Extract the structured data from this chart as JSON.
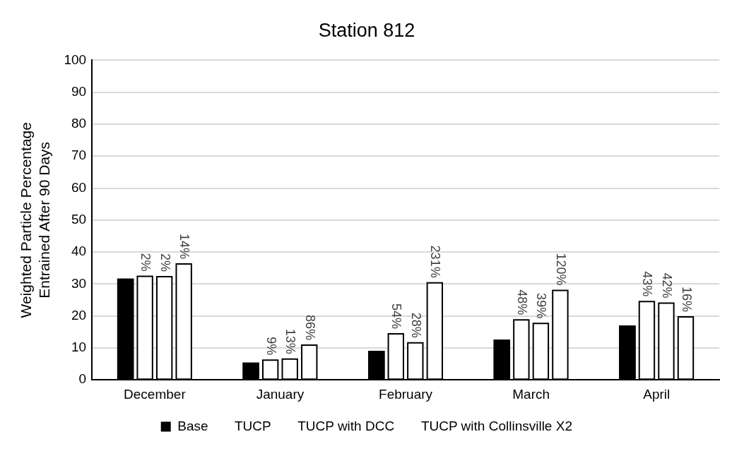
{
  "chart_data": {
    "type": "bar",
    "title": "Station 812",
    "ylabel": "Weighted Particle Percentage\nEntrained After 90 Days",
    "categories": [
      "December",
      "January",
      "February",
      "March",
      "April"
    ],
    "series": [
      {
        "name": "Base",
        "color": "#000000",
        "values": [
          31.7,
          5.4,
          9.1,
          12.6,
          17.0
        ]
      },
      {
        "name": "TUCP",
        "color": "#ffffff",
        "values": [
          32.6,
          6.4,
          14.6,
          19.0,
          24.7
        ]
      },
      {
        "name": "TUCP with DCC",
        "color": "#ffffff",
        "values": [
          32.5,
          6.7,
          11.8,
          17.9,
          24.2
        ]
      },
      {
        "name": "TUCP with Collinsville X2",
        "color": "#ffffff",
        "values": [
          36.5,
          11.1,
          30.6,
          28.2,
          19.9
        ]
      }
    ],
    "annotations": [
      "2%",
      "2%",
      "14%",
      "9%",
      "13%",
      "86%",
      "54%",
      "28%",
      "231%",
      "48%",
      "39%",
      "120%",
      "43%",
      "42%",
      "16%"
    ],
    "ylim": [
      0,
      100
    ],
    "yticks": [
      0,
      10,
      20,
      30,
      40,
      50,
      60,
      70,
      80,
      90,
      100
    ],
    "grid": "y",
    "legend": "bottom"
  }
}
